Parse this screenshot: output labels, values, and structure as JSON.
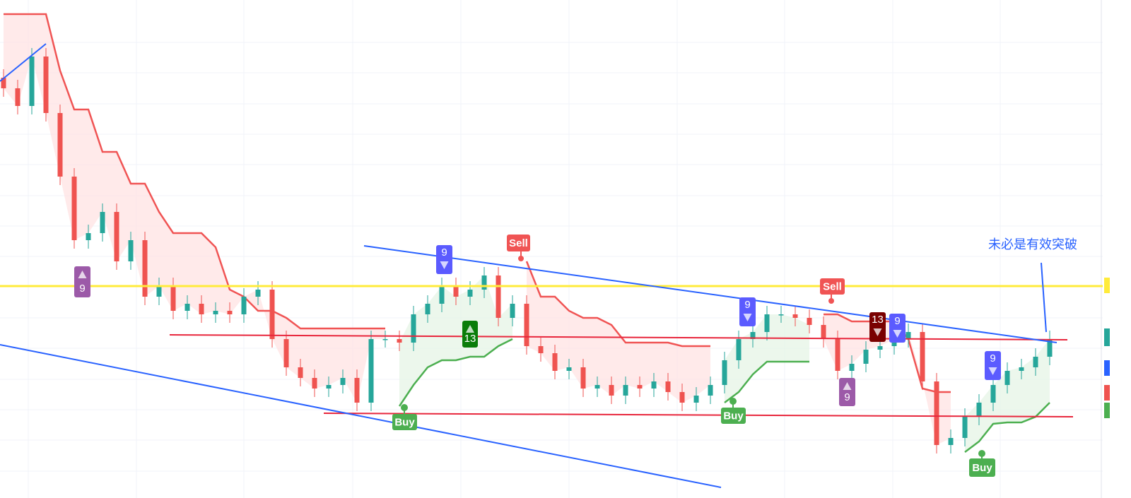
{
  "chart_data": {
    "type": "candlestick",
    "ylim": [
      0,
      705
    ],
    "open": [
      595,
      580,
      555,
      625,
      545,
      455,
      365,
      375,
      405,
      335,
      365,
      285,
      300,
      265,
      275,
      260,
      265,
      260,
      285,
      295,
      225,
      185,
      170,
      155,
      160,
      170,
      135,
      225,
      225,
      220,
      260,
      275,
      300,
      285,
      295,
      315,
      255,
      275,
      215,
      205,
      180,
      185,
      155,
      160,
      145,
      160,
      155,
      165,
      150,
      135,
      145,
      160,
      195,
      225,
      235,
      260,
      260,
      255,
      245,
      225,
      180,
      190,
      210,
      215,
      225,
      235,
      165,
      75,
      85,
      115,
      135,
      160,
      180,
      185,
      200
    ],
    "high": [
      607,
      592,
      637,
      637,
      557,
      467,
      387,
      417,
      417,
      377,
      377,
      312,
      312,
      287,
      287,
      277,
      277,
      297,
      307,
      307,
      237,
      197,
      182,
      172,
      182,
      182,
      237,
      237,
      237,
      272,
      287,
      312,
      312,
      307,
      327,
      327,
      287,
      287,
      227,
      217,
      197,
      197,
      172,
      172,
      172,
      172,
      177,
      177,
      162,
      157,
      172,
      207,
      237,
      247,
      272,
      272,
      272,
      267,
      257,
      237,
      202,
      222,
      227,
      237,
      247,
      247,
      177,
      97,
      127,
      147,
      172,
      192,
      197,
      212,
      237
    ],
    "low": [
      568,
      543,
      543,
      533,
      443,
      353,
      353,
      363,
      323,
      323,
      273,
      273,
      253,
      253,
      248,
      248,
      248,
      248,
      273,
      213,
      173,
      158,
      143,
      143,
      148,
      123,
      123,
      213,
      208,
      208,
      248,
      263,
      273,
      273,
      283,
      243,
      243,
      203,
      193,
      168,
      168,
      143,
      143,
      133,
      133,
      143,
      143,
      138,
      123,
      123,
      133,
      148,
      183,
      213,
      223,
      248,
      243,
      233,
      213,
      168,
      168,
      178,
      198,
      203,
      213,
      153,
      63,
      63,
      73,
      103,
      123,
      148,
      168,
      173,
      188
    ],
    "close": [
      580,
      555,
      625,
      545,
      455,
      365,
      375,
      405,
      335,
      365,
      285,
      300,
      265,
      275,
      260,
      265,
      260,
      285,
      295,
      225,
      185,
      170,
      155,
      160,
      170,
      135,
      225,
      225,
      220,
      260,
      275,
      300,
      285,
      295,
      315,
      255,
      275,
      215,
      205,
      180,
      185,
      155,
      160,
      145,
      160,
      155,
      165,
      150,
      135,
      145,
      160,
      195,
      225,
      235,
      260,
      260,
      255,
      245,
      225,
      180,
      190,
      210,
      215,
      225,
      235,
      165,
      75,
      85,
      115,
      135,
      160,
      180,
      185,
      200,
      225
    ],
    "up_color": "#26a69a",
    "down_color": "#ef5350",
    "supertrend_down": {
      "color": "#f05454",
      "values": [
        685,
        685,
        685,
        685,
        605,
        550,
        550,
        490,
        490,
        445,
        445,
        405,
        375,
        375,
        375,
        355,
        295,
        285,
        265,
        265,
        255,
        240,
        240,
        240,
        240,
        240,
        240,
        240,
        null,
        null,
        null,
        null,
        null,
        null,
        null,
        null,
        null,
        335,
        285,
        285,
        265,
        255,
        255,
        245,
        220,
        220,
        220,
        220,
        215,
        215,
        215,
        null,
        null,
        null,
        null,
        null,
        null,
        null,
        260,
        260,
        250,
        250,
        250,
        250,
        225,
        155,
        150,
        150,
        null,
        null,
        null,
        null,
        null,
        null,
        null
      ]
    },
    "supertrend_up": {
      "color": "#4caf50",
      "values": [
        null,
        null,
        null,
        null,
        null,
        null,
        null,
        null,
        null,
        null,
        null,
        null,
        null,
        null,
        null,
        null,
        null,
        null,
        null,
        null,
        null,
        null,
        null,
        null,
        null,
        null,
        null,
        null,
        130,
        160,
        185,
        195,
        195,
        200,
        200,
        215,
        225,
        null,
        null,
        null,
        null,
        null,
        null,
        null,
        null,
        null,
        null,
        null,
        null,
        null,
        null,
        135,
        150,
        175,
        193,
        193,
        193,
        193,
        null,
        null,
        null,
        null,
        null,
        null,
        null,
        null,
        null,
        null,
        65,
        80,
        105,
        107,
        107,
        115,
        135
      ]
    },
    "signals": [
      "9",
      "9",
      "Sell",
      "13",
      "Buy",
      "9",
      "Buy",
      "Sell",
      "13",
      "9",
      "9",
      "9",
      "Buy"
    ],
    "annotation": "未必是有效突破"
  }
}
